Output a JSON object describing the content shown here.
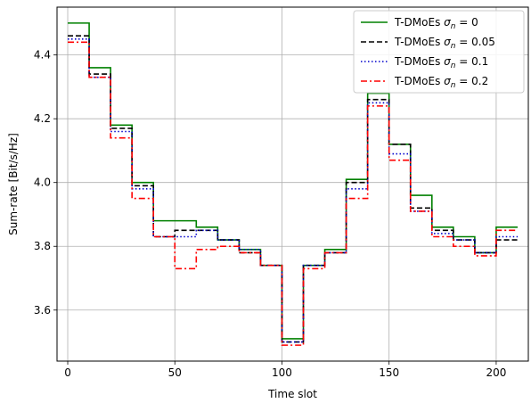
{
  "chart_data": {
    "type": "line",
    "title": "",
    "xlabel": "Time slot",
    "ylabel": "Sum-rate [Bit/s/Hz]",
    "xlim": [
      -5,
      215
    ],
    "ylim": [
      3.44,
      4.55
    ],
    "xticks": [
      0,
      50,
      100,
      150,
      200
    ],
    "yticks": [
      3.6,
      3.8,
      4.0,
      4.2,
      4.4
    ],
    "xtick_labels": [
      "0",
      "50",
      "100",
      "150",
      "200"
    ],
    "ytick_labels": [
      "3.6",
      "3.8",
      "4.0",
      "4.2",
      "4.4"
    ],
    "grid": true,
    "legend_position": "top-right",
    "step_boundaries": [
      0,
      10,
      20,
      30,
      40,
      50,
      60,
      70,
      80,
      90,
      100,
      110,
      120,
      130,
      140,
      150,
      160,
      170,
      180,
      190,
      200,
      210
    ],
    "series": [
      {
        "name": "T-DMoEs σ_n = 0",
        "legend_prefix": "T-DMoEs ",
        "legend_sigma": "σ",
        "legend_sub": "n",
        "legend_value": " = 0",
        "color": "#008000",
        "dash": "",
        "values": [
          4.5,
          4.36,
          4.18,
          4.0,
          3.88,
          3.88,
          3.86,
          3.82,
          3.79,
          3.74,
          3.51,
          3.74,
          3.79,
          4.01,
          4.28,
          4.12,
          3.96,
          3.86,
          3.83,
          3.78,
          3.86
        ]
      },
      {
        "name": "T-DMoEs σ_n = 0.05",
        "legend_prefix": "T-DMoEs ",
        "legend_sigma": "σ",
        "legend_sub": "n",
        "legend_value": " = 0.05",
        "color": "#000000",
        "dash": "6,3",
        "values": [
          4.46,
          4.34,
          4.17,
          3.99,
          3.83,
          3.85,
          3.85,
          3.82,
          3.78,
          3.74,
          3.5,
          3.74,
          3.78,
          4.0,
          4.26,
          4.12,
          3.92,
          3.85,
          3.82,
          3.78,
          3.82
        ]
      },
      {
        "name": "T-DMoEs σ_n = 0.1",
        "legend_prefix": "T-DMoEs ",
        "legend_sigma": "σ",
        "legend_sub": "n",
        "legend_value": " = 0.1",
        "color": "#0000cc",
        "dash": "1.5,2.5",
        "values": [
          4.45,
          4.33,
          4.16,
          3.98,
          3.83,
          3.83,
          3.85,
          3.82,
          3.79,
          3.74,
          3.5,
          3.74,
          3.78,
          3.98,
          4.25,
          4.09,
          3.91,
          3.84,
          3.82,
          3.78,
          3.83
        ]
      },
      {
        "name": "T-DMoEs σ_n = 0.2",
        "legend_prefix": "T-DMoEs ",
        "legend_sigma": "σ",
        "legend_sub": "n",
        "legend_value": " = 0.2",
        "color": "#ff0000",
        "dash": "7,3,2,3",
        "values": [
          4.44,
          4.33,
          4.14,
          3.95,
          3.83,
          3.73,
          3.79,
          3.8,
          3.78,
          3.74,
          3.49,
          3.73,
          3.78,
          3.95,
          4.24,
          4.07,
          3.91,
          3.83,
          3.8,
          3.77,
          3.85
        ]
      }
    ]
  }
}
